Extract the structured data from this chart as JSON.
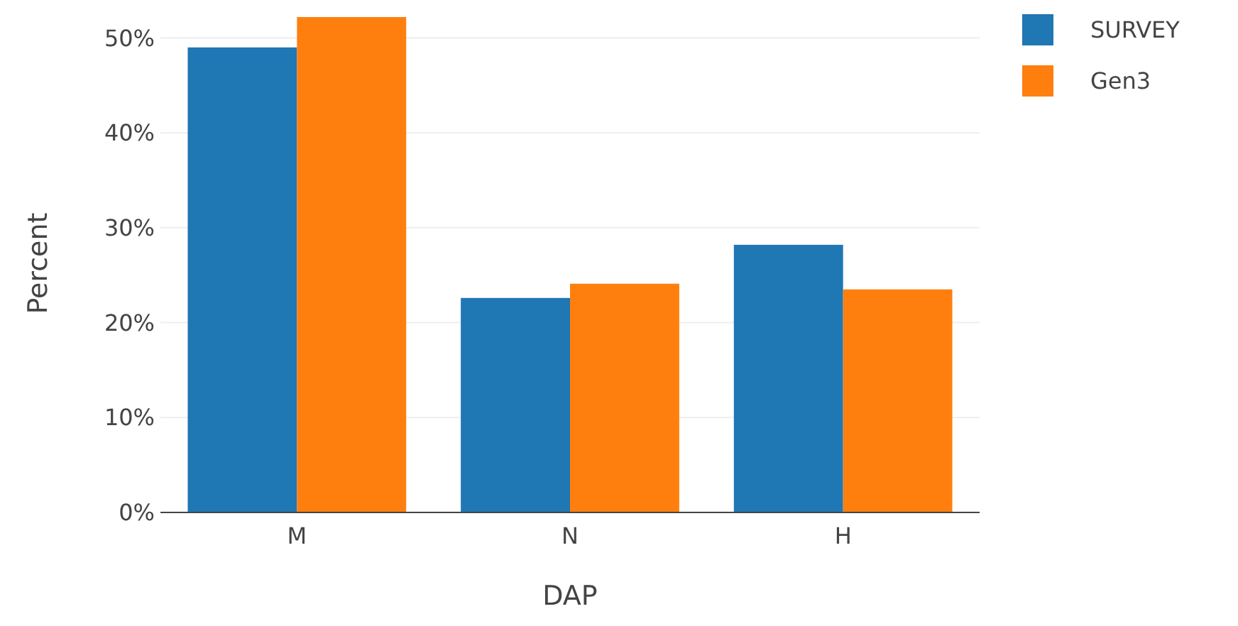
{
  "chart_data": {
    "type": "bar",
    "xlabel": "DAP",
    "ylabel": "Percent",
    "categories": [
      "M",
      "N",
      "H"
    ],
    "series": [
      {
        "name": "SURVEY",
        "color": "#1f77b4",
        "values": [
          49.0,
          22.6,
          28.2
        ]
      },
      {
        "name": "Gen3",
        "color": "#ff7f0e",
        "values": [
          52.2,
          24.1,
          23.5
        ]
      }
    ],
    "ylim": [
      0,
      52.5
    ],
    "yticks": [
      {
        "value": 0,
        "label": "0%"
      },
      {
        "value": 10,
        "label": "10%"
      },
      {
        "value": 20,
        "label": "20%"
      },
      {
        "value": 30,
        "label": "30%"
      },
      {
        "value": 40,
        "label": "40%"
      },
      {
        "value": 50,
        "label": "50%"
      }
    ],
    "grid": "y",
    "legend": "top right"
  }
}
